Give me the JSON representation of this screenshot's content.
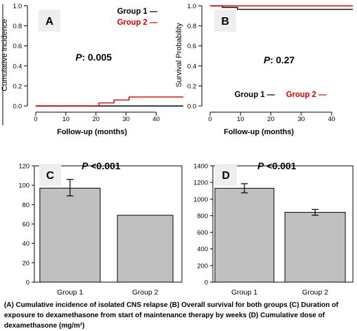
{
  "caption": "(A) Cumulative incidence of isolated CNS relapse (B) Overall survival for both groups (C) Duration of exposure to dexamethasone from start of maintenance therapy by weeks (D) Cumulative dose of dexamethasone (mg/m²)",
  "colors": {
    "group1": "#000000",
    "group2": "#cc0000",
    "bar_fill": "#c0c0c0",
    "panel_label_bg": "#eeeeee"
  },
  "chart_data": [
    {
      "panel": "A",
      "type": "line",
      "xlabel": "Follow-up (months)",
      "ylabel": "Cumulative Incidence",
      "xlim": [
        0,
        49
      ],
      "ylim": [
        0,
        1.0
      ],
      "xticks": [
        0,
        10,
        20,
        30,
        40
      ],
      "yticks": [
        0.0,
        0.2,
        0.4,
        0.6,
        0.8,
        1.0
      ],
      "annotation_italic": "P",
      "annotation_rest": ": 0.005",
      "series": [
        {
          "name": "Group 1",
          "color": "#000000",
          "points": [
            [
              0,
              0
            ],
            [
              49,
              0
            ]
          ]
        },
        {
          "name": "Group 2",
          "color": "#cc0000",
          "points": [
            [
              0,
              0
            ],
            [
              21,
              0
            ],
            [
              21,
              0.03
            ],
            [
              26,
              0.03
            ],
            [
              26,
              0.06
            ],
            [
              31,
              0.06
            ],
            [
              31,
              0.09
            ],
            [
              49,
              0.09
            ]
          ]
        }
      ],
      "legend": [
        {
          "label": "Group 1 —",
          "color": "#000000"
        },
        {
          "label": "Group 2 —",
          "color": "#cc0000"
        }
      ],
      "legend_position": "top-right"
    },
    {
      "panel": "B",
      "type": "line",
      "xlabel": "Follow-up (months)",
      "ylabel": "Survival Probability",
      "xlim": [
        0,
        47
      ],
      "ylim": [
        0,
        1.0
      ],
      "xticks": [
        0,
        10,
        20,
        30,
        40
      ],
      "yticks": [
        0.0,
        0.2,
        0.4,
        0.6,
        0.8,
        1.0
      ],
      "annotation_italic": "P",
      "annotation_rest": ": 0.27",
      "series": [
        {
          "name": "Group 1",
          "color": "#000000",
          "points": [
            [
              0,
              1.0
            ],
            [
              4,
              1.0
            ],
            [
              4,
              0.985
            ],
            [
              9,
              0.985
            ],
            [
              9,
              0.965
            ],
            [
              47,
              0.965
            ]
          ]
        },
        {
          "name": "Group 2",
          "color": "#cc0000",
          "points": [
            [
              0,
              1.0
            ],
            [
              47,
              1.0
            ]
          ]
        }
      ],
      "legend": [
        {
          "label": "Group 1 —",
          "color": "#000000"
        },
        {
          "label": "Group 2 —",
          "color": "#cc0000"
        }
      ],
      "legend_position": "bottom-center"
    },
    {
      "panel": "C",
      "type": "bar",
      "categories": [
        "Group 1",
        "Group 2"
      ],
      "values": [
        97,
        69
      ],
      "error": [
        [
          89,
          106
        ],
        null
      ],
      "ylim": [
        0,
        120
      ],
      "yticks": [
        0,
        20,
        40,
        60,
        80,
        100,
        120
      ],
      "xlabel": "",
      "ylabel": "",
      "annotation_italic": "P",
      "annotation_rest": " <0.001"
    },
    {
      "panel": "D",
      "type": "bar",
      "categories": [
        "Group 1",
        "Group 2"
      ],
      "values": [
        1130,
        840
      ],
      "error": [
        [
          1075,
          1185
        ],
        [
          805,
          875
        ]
      ],
      "ylim": [
        0,
        1400
      ],
      "yticks": [
        0,
        200,
        400,
        600,
        800,
        1000,
        1200,
        1400
      ],
      "xlabel": "",
      "ylabel": "",
      "annotation_italic": "P",
      "annotation_rest": " <0.001"
    }
  ]
}
